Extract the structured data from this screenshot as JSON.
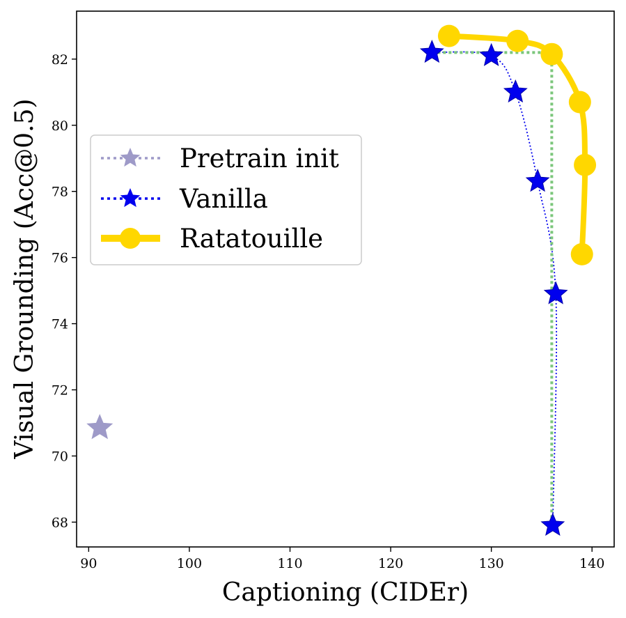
{
  "chart_data": {
    "type": "scatter",
    "title": "",
    "xlabel": "Captioning (CIDEr)",
    "ylabel": "Visual Grounding (Acc@0.5)",
    "xlim": [
      88.8,
      142.2
    ],
    "ylim": [
      67.25,
      83.45
    ],
    "xticks": [
      90,
      100,
      110,
      120,
      130,
      140
    ],
    "yticks": [
      68,
      70,
      72,
      74,
      76,
      78,
      80,
      82
    ],
    "grid": false,
    "legend_position": "center-left",
    "series": [
      {
        "name": "Pretrain init",
        "style": "star-dotted",
        "color": "#9e9ac8",
        "points": [
          [
            91.1,
            70.85
          ]
        ]
      },
      {
        "name": "Vanilla",
        "style": "star-dotted-curve",
        "color": "#0000ee",
        "points": [
          [
            124.1,
            82.2
          ],
          [
            130.0,
            82.1
          ],
          [
            132.4,
            81.0
          ],
          [
            134.6,
            78.3
          ],
          [
            136.4,
            74.9
          ],
          [
            136.1,
            67.9
          ]
        ]
      },
      {
        "name": "Ratatouille",
        "style": "circle-thick-line",
        "color": "#ffd700",
        "points": [
          [
            125.8,
            82.7
          ],
          [
            132.6,
            82.55
          ],
          [
            136.0,
            82.15
          ],
          [
            138.8,
            80.7
          ],
          [
            139.3,
            78.8
          ],
          [
            139.0,
            76.1
          ]
        ]
      }
    ],
    "reference_lines": {
      "color": "#7bc67b",
      "horizontal_y": 82.2,
      "horizontal_from_x": 124.1,
      "horizontal_to_x": 136.0,
      "vertical_x": 136.0,
      "vertical_from_y": 82.2,
      "vertical_to_y": 67.9
    }
  }
}
